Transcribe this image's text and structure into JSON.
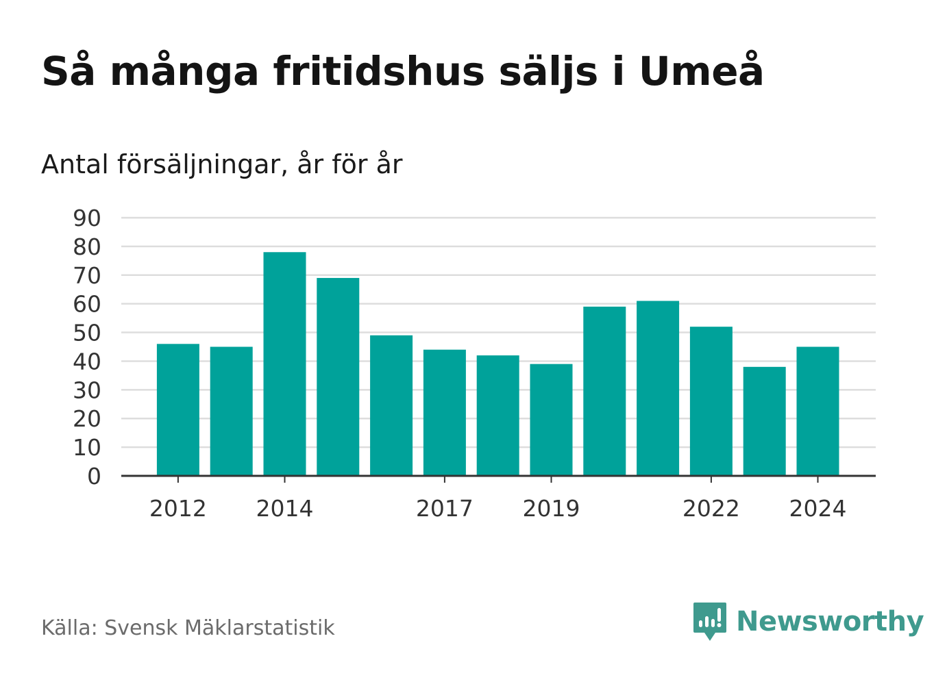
{
  "header": {
    "title": "Så många fritidshus säljs i Umeå",
    "subtitle": "Antal försäljningar, år för år"
  },
  "footer": {
    "source": "Källa: Svensk Mäklarstatistik",
    "brand": "Newsworthy"
  },
  "colors": {
    "bar": "#00a29a",
    "grid": "#dddddd",
    "axis": "#333333",
    "brand": "#3f9a8e"
  },
  "chart_data": {
    "type": "bar",
    "categories": [
      "2012",
      "2013",
      "2014",
      "2015",
      "2016",
      "2017",
      "2018",
      "2019",
      "2020",
      "2021",
      "2022",
      "2023",
      "2024"
    ],
    "values": [
      46,
      45,
      78,
      69,
      49,
      44,
      42,
      39,
      59,
      61,
      52,
      38,
      45
    ],
    "x_tick_labels": [
      "2012",
      "2014",
      "2017",
      "2019",
      "2022",
      "2024"
    ],
    "y_ticks": [
      0,
      10,
      20,
      30,
      40,
      50,
      60,
      70,
      80,
      90
    ],
    "ylim": [
      0,
      90
    ],
    "grid": true,
    "legend": "none"
  }
}
